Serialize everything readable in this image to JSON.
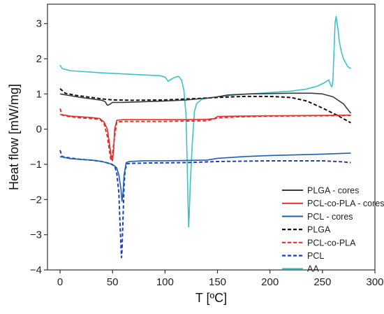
{
  "chart_data": {
    "type": "line",
    "title": "",
    "xlabel": "T [ºC]",
    "ylabel": "Heat flow [mW/mg]",
    "xlim": [
      -12,
      300
    ],
    "ylim": [
      -4,
      3.55
    ],
    "xticks": [
      0,
      50,
      100,
      150,
      200,
      250,
      300
    ],
    "xtick_labels": [
      "0",
      "50",
      "100",
      "150",
      "200",
      "250",
      "300"
    ],
    "yticks": [
      -4,
      -3,
      -2,
      -1,
      0,
      1,
      2,
      3
    ],
    "ytick_labels": [
      "−4",
      "−3",
      "−2",
      "−1",
      "0",
      "1",
      "2",
      "3"
    ],
    "grid": false,
    "legend_position": "lower-right",
    "series": [
      {
        "name": "PLGA - cores",
        "color": "#3a3a3a",
        "dash": "solid",
        "points": [
          [
            0,
            1.0
          ],
          [
            10,
            0.95
          ],
          [
            20,
            0.9
          ],
          [
            30,
            0.86
          ],
          [
            40,
            0.82
          ],
          [
            43,
            0.78
          ],
          [
            45,
            0.68
          ],
          [
            47,
            0.7
          ],
          [
            50,
            0.76
          ],
          [
            60,
            0.76
          ],
          [
            80,
            0.78
          ],
          [
            100,
            0.8
          ],
          [
            120,
            0.83
          ],
          [
            140,
            0.88
          ],
          [
            150,
            0.92
          ],
          [
            160,
            0.97
          ],
          [
            180,
            1.0
          ],
          [
            200,
            1.01
          ],
          [
            220,
            1.02
          ],
          [
            240,
            1.02
          ],
          [
            250,
            1.0
          ],
          [
            260,
            0.92
          ],
          [
            270,
            0.72
          ],
          [
            277,
            0.45
          ]
        ]
      },
      {
        "name": "PCL-co-PLA - cores",
        "color": "#e03030",
        "dash": "solid",
        "points": [
          [
            0,
            0.42
          ],
          [
            10,
            0.37
          ],
          [
            20,
            0.35
          ],
          [
            30,
            0.33
          ],
          [
            38,
            0.3
          ],
          [
            42,
            0.2
          ],
          [
            45,
            0.0
          ],
          [
            47,
            -0.4
          ],
          [
            49,
            -0.85
          ],
          [
            50,
            -0.9
          ],
          [
            51,
            -0.6
          ],
          [
            52,
            0.0
          ],
          [
            54,
            0.25
          ],
          [
            60,
            0.27
          ],
          [
            80,
            0.27
          ],
          [
            100,
            0.27
          ],
          [
            120,
            0.27
          ],
          [
            140,
            0.28
          ],
          [
            147,
            0.3
          ],
          [
            150,
            0.36
          ],
          [
            170,
            0.37
          ],
          [
            200,
            0.38
          ],
          [
            250,
            0.39
          ],
          [
            277,
            0.4
          ]
        ]
      },
      {
        "name": "PCL - cores",
        "color": "#1f5fb0",
        "dash": "solid",
        "points": [
          [
            0,
            -0.78
          ],
          [
            10,
            -0.84
          ],
          [
            20,
            -0.86
          ],
          [
            30,
            -0.88
          ],
          [
            40,
            -0.92
          ],
          [
            50,
            -1.0
          ],
          [
            54,
            -1.1
          ],
          [
            56,
            -1.3
          ],
          [
            58,
            -1.7
          ],
          [
            59,
            -2.05
          ],
          [
            60,
            -1.8
          ],
          [
            61,
            -1.3
          ],
          [
            63,
            -0.95
          ],
          [
            66,
            -0.92
          ],
          [
            80,
            -0.9
          ],
          [
            100,
            -0.9
          ],
          [
            120,
            -0.89
          ],
          [
            140,
            -0.88
          ],
          [
            150,
            -0.83
          ],
          [
            175,
            -0.78
          ],
          [
            200,
            -0.75
          ],
          [
            225,
            -0.73
          ],
          [
            250,
            -0.71
          ],
          [
            277,
            -0.68
          ]
        ]
      },
      {
        "name": "PLGA",
        "color": "#111111",
        "dash": "dashed",
        "points": [
          [
            0,
            1.15
          ],
          [
            5,
            1.02
          ],
          [
            15,
            0.96
          ],
          [
            25,
            0.92
          ],
          [
            40,
            0.86
          ],
          [
            50,
            0.83
          ],
          [
            70,
            0.82
          ],
          [
            100,
            0.83
          ],
          [
            130,
            0.87
          ],
          [
            150,
            0.9
          ],
          [
            175,
            0.93
          ],
          [
            200,
            0.93
          ],
          [
            220,
            0.9
          ],
          [
            235,
            0.8
          ],
          [
            250,
            0.6
          ],
          [
            265,
            0.38
          ],
          [
            277,
            0.18
          ]
        ]
      },
      {
        "name": "PCL-co-PLA",
        "color": "#e03030",
        "dash": "dashed",
        "points": [
          [
            0,
            0.58
          ],
          [
            2,
            0.4
          ],
          [
            10,
            0.35
          ],
          [
            20,
            0.32
          ],
          [
            30,
            0.3
          ],
          [
            38,
            0.28
          ],
          [
            42,
            0.15
          ],
          [
            45,
            -0.2
          ],
          [
            47,
            -0.6
          ],
          [
            48.5,
            -0.88
          ],
          [
            50,
            -0.7
          ],
          [
            52,
            -0.2
          ],
          [
            54,
            0.2
          ],
          [
            60,
            0.22
          ],
          [
            80,
            0.22
          ],
          [
            100,
            0.22
          ],
          [
            120,
            0.23
          ],
          [
            140,
            0.24
          ],
          [
            150,
            0.32
          ],
          [
            170,
            0.35
          ],
          [
            200,
            0.37
          ],
          [
            250,
            0.38
          ],
          [
            277,
            0.39
          ]
        ]
      },
      {
        "name": "PCL",
        "color": "#1f3fc0",
        "dash": "dashed",
        "points": [
          [
            0,
            -0.6
          ],
          [
            2,
            -0.78
          ],
          [
            10,
            -0.82
          ],
          [
            20,
            -0.86
          ],
          [
            30,
            -0.88
          ],
          [
            40,
            -0.92
          ],
          [
            48,
            -0.98
          ],
          [
            52,
            -1.05
          ],
          [
            54,
            -1.25
          ],
          [
            56,
            -1.8
          ],
          [
            57,
            -2.6
          ],
          [
            58,
            -3.3
          ],
          [
            58.5,
            -3.65
          ],
          [
            59,
            -3.45
          ],
          [
            60,
            -2.5
          ],
          [
            61,
            -1.6
          ],
          [
            62,
            -1.15
          ],
          [
            64,
            -0.98
          ],
          [
            70,
            -0.97
          ],
          [
            90,
            -0.96
          ],
          [
            120,
            -0.95
          ],
          [
            150,
            -0.92
          ],
          [
            175,
            -0.91
          ],
          [
            200,
            -0.9
          ],
          [
            230,
            -0.9
          ],
          [
            250,
            -0.9
          ],
          [
            270,
            -0.93
          ],
          [
            277,
            -0.95
          ]
        ]
      },
      {
        "name": "AA",
        "color": "#3cc3c8",
        "dash": "solid",
        "points": [
          [
            0,
            1.82
          ],
          [
            2,
            1.72
          ],
          [
            10,
            1.66
          ],
          [
            20,
            1.64
          ],
          [
            40,
            1.6
          ],
          [
            60,
            1.57
          ],
          [
            80,
            1.54
          ],
          [
            95,
            1.52
          ],
          [
            100,
            1.48
          ],
          [
            103,
            1.36
          ],
          [
            106,
            1.42
          ],
          [
            110,
            1.48
          ],
          [
            113,
            1.5
          ],
          [
            116,
            1.38
          ],
          [
            118,
            1.1
          ],
          [
            120,
            0.4
          ],
          [
            121,
            -0.8
          ],
          [
            122,
            -2.2
          ],
          [
            122.5,
            -2.78
          ],
          [
            123,
            -2.5
          ],
          [
            124,
            -1.6
          ],
          [
            126,
            -0.4
          ],
          [
            128,
            0.5
          ],
          [
            130,
            0.72
          ],
          [
            135,
            0.85
          ],
          [
            150,
            0.92
          ],
          [
            170,
            0.98
          ],
          [
            200,
            1.04
          ],
          [
            220,
            1.08
          ],
          [
            235,
            1.14
          ],
          [
            245,
            1.22
          ],
          [
            252,
            1.32
          ],
          [
            256,
            1.4
          ],
          [
            258,
            1.24
          ],
          [
            259,
            1.2
          ],
          [
            260,
            1.4
          ],
          [
            261,
            2.2
          ],
          [
            262,
            3.0
          ],
          [
            263,
            3.2
          ],
          [
            264,
            3.0
          ],
          [
            265,
            2.8
          ],
          [
            266,
            2.5
          ],
          [
            268,
            2.2
          ],
          [
            270,
            2.0
          ],
          [
            274,
            1.78
          ],
          [
            277,
            1.72
          ]
        ]
      }
    ]
  }
}
